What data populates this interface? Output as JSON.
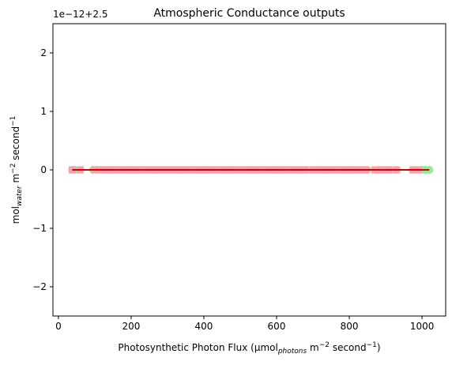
{
  "chart_data": {
    "type": "scatter",
    "title": "Atmospheric Conductance outputs",
    "offset_label": "1e−12+2.5",
    "xlabel": {
      "main": "Photosynthetic Photon Flux (µmol",
      "sub": "photons",
      "mid": " m",
      "sup1": "−2",
      "mid2": " second",
      "sup2": "−1",
      "end": ")"
    },
    "ylabel": {
      "main": "mol",
      "sub": "water",
      "mid": " m",
      "sup1": "−2",
      "mid2": " second",
      "sup2": "−1"
    },
    "xlim": [
      -15,
      1065
    ],
    "ylim": [
      -2.5,
      2.5
    ],
    "xticks": [
      0,
      200,
      400,
      600,
      800,
      1000
    ],
    "xtick_labels": [
      "0",
      "200",
      "400",
      "600",
      "800",
      "1000"
    ],
    "yticks": [
      2,
      1,
      0,
      -1,
      -2
    ],
    "ytick_labels": [
      "2",
      "1",
      "0",
      "−1",
      "−2"
    ],
    "series": [
      {
        "color": "#90ee90",
        "marker": "circle",
        "x": [
          38,
          45,
          95,
          105,
          115,
          125,
          140,
          150,
          160,
          170,
          180,
          190,
          200,
          210,
          220,
          230,
          240,
          250,
          260,
          270,
          280,
          290,
          300,
          310,
          320,
          330,
          340,
          350,
          360,
          370,
          380,
          390,
          400,
          410,
          420,
          430,
          440,
          450,
          460,
          470,
          480,
          490,
          500,
          510,
          520,
          530,
          540,
          550,
          560,
          570,
          580,
          590,
          600,
          610,
          620,
          630,
          640,
          650,
          660,
          670,
          680,
          700,
          710,
          720,
          730,
          740,
          750,
          760,
          770,
          780,
          790,
          800,
          810,
          820,
          830,
          840,
          850,
          880,
          890,
          900,
          910,
          930,
          975,
          985,
          1000,
          1010,
          1020
        ],
        "y": 0
      },
      {
        "color": "#ff9eb0",
        "marker": "square",
        "x": [
          38,
          60,
          100,
          110,
          120,
          135,
          145,
          155,
          165,
          175,
          185,
          195,
          205,
          215,
          225,
          235,
          245,
          255,
          265,
          275,
          285,
          295,
          305,
          315,
          325,
          335,
          345,
          355,
          365,
          375,
          385,
          395,
          405,
          415,
          425,
          435,
          445,
          455,
          465,
          480,
          495,
          505,
          515,
          525,
          535,
          545,
          555,
          565,
          575,
          585,
          595,
          605,
          615,
          625,
          635,
          645,
          655,
          665,
          680,
          700,
          715,
          725,
          740,
          755,
          770,
          785,
          800,
          815,
          830,
          845,
          870,
          885,
          895,
          910,
          930,
          975,
          990
        ],
        "y": 0
      },
      {
        "color": "#cc0000",
        "marker": "line",
        "x": [
          38,
          1020
        ],
        "y": [
          0,
          0
        ]
      }
    ]
  }
}
